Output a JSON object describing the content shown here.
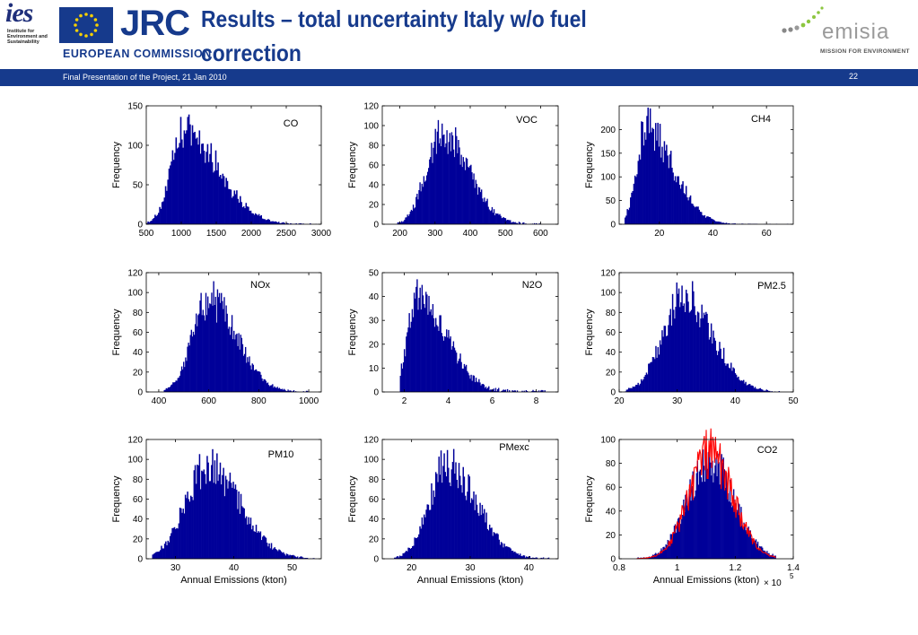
{
  "header": {
    "title": "Results – total uncertainty Italy w/o fuel correction",
    "ies_logo": {
      "mark": "ies",
      "subtitle": "Institute for Environment and Sustainability"
    },
    "jrc_logo": "JRC",
    "org_name": "EUROPEAN COMMISSION",
    "emisia_logo": {
      "name": "emisia",
      "tagline": "MISSION FOR ENVIRONMENT"
    }
  },
  "footer_bar": {
    "left_text": "Final Presentation of the Project, 21 Jan 2010",
    "page_number": "22"
  },
  "colors": {
    "bar": "#000099",
    "overlay": "#ff0000",
    "brand": "#163a8c"
  },
  "chart_data": [
    {
      "type": "bar",
      "name": "CO",
      "label": "CO",
      "ylabel": "Frequency",
      "xlabel": "",
      "xlim": [
        500,
        3000
      ],
      "ylim": [
        0,
        150
      ],
      "xticks": [
        "500",
        "1000",
        "1500",
        "2000",
        "2500",
        "3000"
      ],
      "yticks": [
        "0",
        "50",
        "100",
        "150"
      ],
      "distribution": {
        "peak": 1050,
        "sigma_left": 190,
        "sigma_right": 480,
        "height": 118,
        "x_min": 500,
        "x_max": 3000
      }
    },
    {
      "type": "bar",
      "name": "VOC",
      "label": "VOC",
      "ylabel": "Frequency",
      "xlabel": "",
      "xlim": [
        150,
        650
      ],
      "ylim": [
        0,
        120
      ],
      "xticks": [
        "200",
        "300",
        "400",
        "500",
        "600"
      ],
      "yticks": [
        "0",
        "20",
        "40",
        "60",
        "80",
        "100",
        "120"
      ],
      "distribution": {
        "peak": 320,
        "sigma_left": 45,
        "sigma_right": 75,
        "height": 92,
        "x_min": 190,
        "x_max": 600
      }
    },
    {
      "type": "bar",
      "name": "CH4",
      "label": "CH4",
      "ylabel": "Frequency",
      "xlabel": "",
      "xlim": [
        5,
        70
      ],
      "ylim": [
        0,
        250
      ],
      "xticks": [
        "20",
        "40",
        "60"
      ],
      "yticks": [
        "0",
        "50",
        "100",
        "150",
        "200"
      ],
      "distribution": {
        "peak": 15,
        "sigma_left": 3.5,
        "sigma_right": 10,
        "height": 205,
        "x_min": 7,
        "x_max": 68
      }
    },
    {
      "type": "bar",
      "name": "NOx",
      "label": "NOx",
      "ylabel": "Frequency",
      "xlabel": "",
      "xlim": [
        350,
        1050
      ],
      "ylim": [
        0,
        120
      ],
      "xticks": [
        "400",
        "600",
        "800",
        "1000"
      ],
      "yticks": [
        "0",
        "20",
        "40",
        "60",
        "80",
        "100",
        "120"
      ],
      "distribution": {
        "peak": 600,
        "sigma_left": 65,
        "sigma_right": 110,
        "height": 92,
        "x_min": 420,
        "x_max": 1000
      }
    },
    {
      "type": "bar",
      "name": "N2O",
      "label": "N2O",
      "ylabel": "Frequency",
      "xlabel": "",
      "xlim": [
        1,
        9
      ],
      "ylim": [
        0,
        50
      ],
      "xticks": [
        "2",
        "4",
        "6",
        "8"
      ],
      "yticks": [
        "0",
        "10",
        "20",
        "30",
        "40",
        "50"
      ],
      "distribution": {
        "peak": 2.6,
        "sigma_left": 0.45,
        "sigma_right": 1.3,
        "height": 40,
        "x_min": 1.8,
        "x_max": 8.5
      }
    },
    {
      "type": "bar",
      "name": "PM2.5",
      "label": "PM2.5",
      "ylabel": "Frequency",
      "xlabel": "",
      "xlim": [
        20,
        50
      ],
      "ylim": [
        0,
        120
      ],
      "xticks": [
        "20",
        "30",
        "40",
        "50"
      ],
      "yticks": [
        "0",
        "20",
        "40",
        "60",
        "80",
        "100",
        "120"
      ],
      "distribution": {
        "peak": 31,
        "sigma_left": 3.5,
        "sigma_right": 5,
        "height": 97,
        "x_min": 21,
        "x_max": 48
      }
    },
    {
      "type": "bar",
      "name": "PM10",
      "label": "PM10",
      "ylabel": "Frequency",
      "xlabel": "Annual Emissions (kton)",
      "xlim": [
        25,
        55
      ],
      "ylim": [
        0,
        120
      ],
      "xticks": [
        "30",
        "40",
        "50"
      ],
      "yticks": [
        "0",
        "20",
        "40",
        "60",
        "80",
        "100",
        "120"
      ],
      "distribution": {
        "peak": 35.5,
        "sigma_left": 3.8,
        "sigma_right": 5.5,
        "height": 93,
        "x_min": 26,
        "x_max": 54
      }
    },
    {
      "type": "bar",
      "name": "PMexc",
      "label": "PMexc",
      "ylabel": "Frequency",
      "xlabel": "Annual Emissions (kton)",
      "xlim": [
        15,
        45
      ],
      "ylim": [
        0,
        120
      ],
      "xticks": [
        "20",
        "30",
        "40"
      ],
      "yticks": [
        "0",
        "20",
        "40",
        "60",
        "80",
        "100",
        "120"
      ],
      "distribution": {
        "peak": 26,
        "sigma_left": 3,
        "sigma_right": 5,
        "height": 95,
        "x_min": 17,
        "x_max": 44
      }
    },
    {
      "type": "bar",
      "name": "CO2",
      "label": "CO2",
      "ylabel": "Frequency",
      "xlabel": "Annual Emissions (kton)",
      "xlim": [
        0.8,
        1.4
      ],
      "ylim": [
        0,
        100
      ],
      "x_multiplier": "× 10",
      "x_exponent": "5",
      "xticks": [
        "0.8",
        "1",
        "1.2",
        "1.4"
      ],
      "yticks": [
        "0",
        "20",
        "40",
        "60",
        "80",
        "100"
      ],
      "distribution": {
        "peak": 1.11,
        "sigma_left": 0.075,
        "sigma_right": 0.085,
        "height": 82,
        "x_min": 0.86,
        "x_max": 1.34
      },
      "overlay_line": {
        "color": "#ff0000",
        "peak": 1.11,
        "sigma_left": 0.07,
        "sigma_right": 0.08,
        "height": 88
      }
    }
  ]
}
